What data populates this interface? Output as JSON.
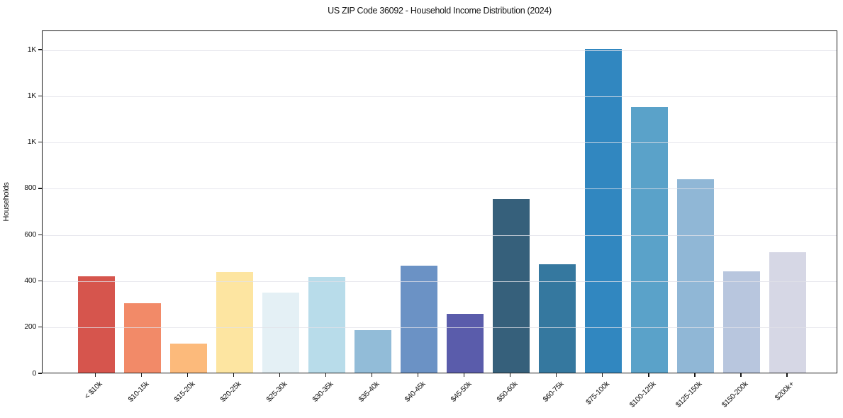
{
  "chart_data": {
    "type": "bar",
    "title": "US ZIP Code 36092 - Household Income Distribution (2024)",
    "xlabel": "",
    "ylabel": "Households",
    "categories": [
      "< $10k",
      "$10-15k",
      "$15-20k",
      "$20-25k",
      "$25-30k",
      "$30-35k",
      "$35-40k",
      "$40-45k",
      "$45-50k",
      "$50-60k",
      "$60-75k",
      "$75-100k",
      "$100-125k",
      "$125-150k",
      "$150-200k",
      "$200k+"
    ],
    "values": [
      418,
      300,
      127,
      434,
      346,
      415,
      184,
      463,
      253,
      750,
      468,
      1400,
      1148,
      838,
      439,
      522
    ],
    "bar_colors": [
      "#d6554d",
      "#f28a68",
      "#fcba7b",
      "#fde5a1",
      "#e4f0f5",
      "#b8dcea",
      "#92bcd8",
      "#6b92c5",
      "#5a5cab",
      "#36607b",
      "#35789f",
      "#3187c0",
      "#5aa2c9",
      "#90b7d6",
      "#b8c6de",
      "#d6d7e5"
    ],
    "ylim": [
      0,
      1483
    ],
    "yticks": [
      0,
      200,
      400,
      600,
      800,
      1000,
      1200,
      1400
    ],
    "ytick_labels": [
      "0",
      "200",
      "400",
      "600",
      "800",
      "1K",
      "1K",
      "1K"
    ],
    "grid": "horizontal-only",
    "legend": "none",
    "x_tick_rotation_deg": 45
  },
  "colors": {
    "background": "#ffffff",
    "axis": "#1a1a1a",
    "grid": "#e6e6ee",
    "text": "#111111"
  }
}
